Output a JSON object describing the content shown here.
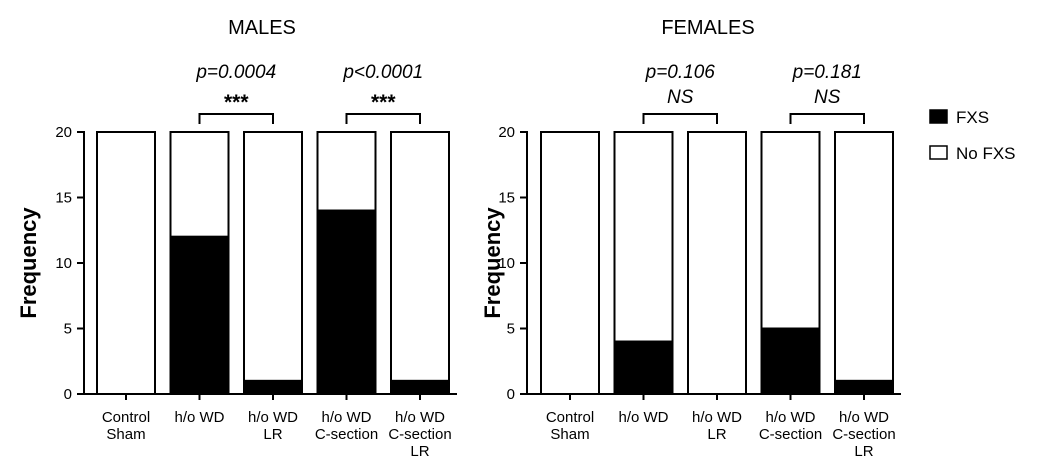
{
  "chart_data": [
    {
      "type": "bar",
      "stacked": true,
      "title": "MALES",
      "ylabel": "Frequency",
      "ylim": [
        0,
        20
      ],
      "yticks": [
        0,
        5,
        10,
        15,
        20
      ],
      "categories": [
        [
          "Control",
          "Sham"
        ],
        [
          "h/o WD"
        ],
        [
          "h/o WD",
          "LR"
        ],
        [
          "h/o WD",
          "C-section"
        ],
        [
          "h/o WD",
          "C-section",
          "LR"
        ]
      ],
      "series": [
        {
          "name": "FXS",
          "color": "#000000",
          "values": [
            0,
            12,
            1,
            14,
            1
          ]
        },
        {
          "name": "No FXS",
          "color": "#ffffff",
          "values": [
            20,
            8,
            19,
            6,
            19
          ]
        }
      ],
      "comparisons": [
        {
          "from": 1,
          "to": 2,
          "p": "p=0.0004",
          "sig": "***"
        },
        {
          "from": 3,
          "to": 4,
          "p": "p<0.0001",
          "sig": "***"
        }
      ]
    },
    {
      "type": "bar",
      "stacked": true,
      "title": "FEMALES",
      "ylabel": "Frequency",
      "ylim": [
        0,
        20
      ],
      "yticks": [
        0,
        5,
        10,
        15,
        20
      ],
      "categories": [
        [
          "Control",
          "Sham"
        ],
        [
          "h/o WD"
        ],
        [
          "h/o WD",
          "LR"
        ],
        [
          "h/o WD",
          "C-section"
        ],
        [
          "h/o WD",
          "C-section",
          "LR"
        ]
      ],
      "series": [
        {
          "name": "FXS",
          "color": "#000000",
          "values": [
            0,
            4,
            0,
            5,
            1
          ]
        },
        {
          "name": "No FXS",
          "color": "#ffffff",
          "values": [
            20,
            16,
            20,
            15,
            19
          ]
        }
      ],
      "comparisons": [
        {
          "from": 1,
          "to": 2,
          "p": "p=0.106",
          "sig": "NS"
        },
        {
          "from": 3,
          "to": 4,
          "p": "p=0.181",
          "sig": "NS"
        }
      ]
    }
  ],
  "legend": {
    "placement": "right",
    "items": [
      {
        "label": "FXS",
        "color": "#000000"
      },
      {
        "label": "No FXS",
        "color": "#ffffff"
      }
    ]
  }
}
